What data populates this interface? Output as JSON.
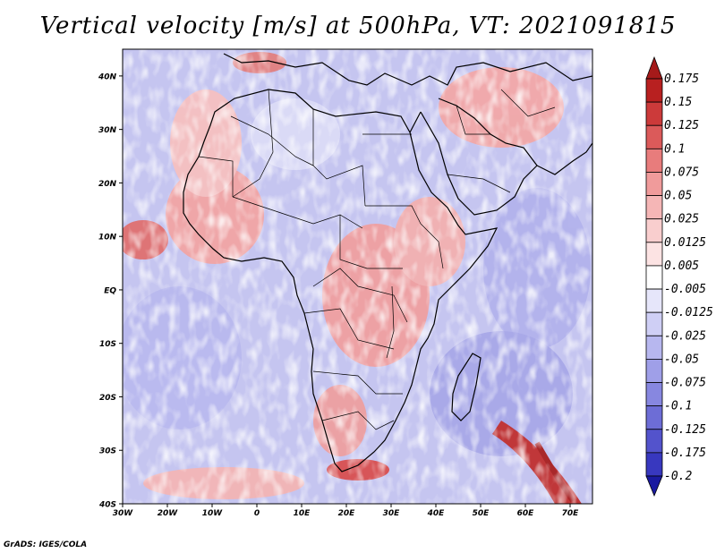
{
  "title": "Vertical velocity [m/s] at 500hPa, VT: 2021091815",
  "credit": "GrADS: IGES/COLA",
  "map": {
    "lon_range": [
      -30,
      75
    ],
    "lat_range": [
      -40,
      45
    ],
    "lat_labels": [
      "40N",
      "30N",
      "20N",
      "10N",
      "EQ",
      "10S",
      "20S",
      "30S",
      "40S"
    ],
    "lat_values": [
      40,
      30,
      20,
      10,
      0,
      -10,
      -20,
      -30,
      -40
    ],
    "lon_labels": [
      "30W",
      "20W",
      "10W",
      "0",
      "10E",
      "20E",
      "30E",
      "40E",
      "50E",
      "60E",
      "70E"
    ],
    "lon_values": [
      -30,
      -20,
      -10,
      0,
      10,
      20,
      30,
      40,
      50,
      60,
      70
    ]
  },
  "colorbar": {
    "levels": [
      "0.175",
      "0.15",
      "0.125",
      "0.1",
      "0.075",
      "0.05",
      "0.025",
      "0.0125",
      "0.005",
      "-0.005",
      "-0.0125",
      "-0.025",
      "-0.05",
      "-0.075",
      "-0.1",
      "-0.125",
      "-0.175",
      "-0.2"
    ],
    "colors": [
      "#b82020",
      "#cc3a3a",
      "#db5a5a",
      "#e87c7c",
      "#f09b9b",
      "#f5b6b6",
      "#f9cece",
      "#fce3e3",
      "#ffffff",
      "#e6e6fa",
      "#cfcff5",
      "#b7b7ef",
      "#9f9fe8",
      "#8787e0",
      "#6d6dd6",
      "#5353cc",
      "#3838bf",
      "#2020aa"
    ],
    "top_arrow_color": "#a51a1a",
    "bottom_arrow_color": "#1a1aa0"
  }
}
